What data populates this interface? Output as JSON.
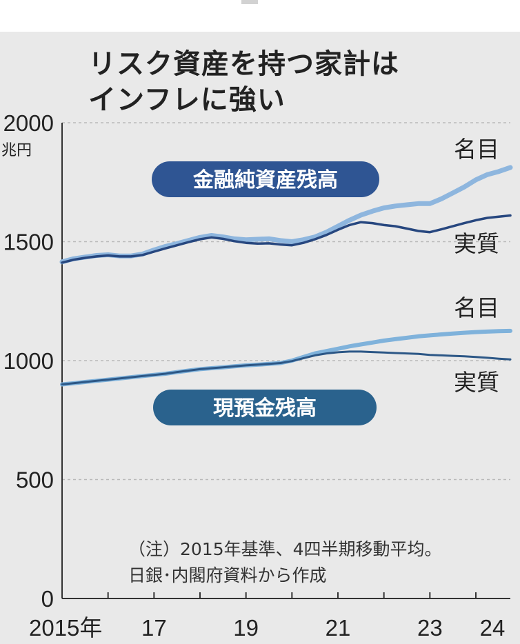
{
  "title_line1": "リスク資産を持つ家計は",
  "title_line2": "インフレに強い",
  "note_line1": "（注）2015年基準、4四半期移動平均。",
  "note_line2": "日銀･内閣府資料から作成",
  "colors": {
    "nominal": "#8eb6de",
    "real": "#27477f",
    "badge_fin": "#2f5593",
    "badge_dep": "#2a628d",
    "cash_nominal": "#7fb2db",
    "cash_real": "#2c5786"
  },
  "chart_data": {
    "type": "line",
    "title": "リスク資産を持つ家計はインフレに強い",
    "ylabel": "兆円",
    "ylim": [
      0,
      2000
    ],
    "yticks": [
      0,
      500,
      1000,
      1500,
      2000
    ],
    "xlim": [
      2015,
      2024.75
    ],
    "xticks": [
      2015,
      2017,
      2019,
      2021,
      2023,
      2024
    ],
    "xtick_labels": [
      "2015年",
      "17",
      "19",
      "21",
      "23",
      "24"
    ],
    "grid": "horizontal dashed",
    "groups": [
      {
        "name": "金融純資産残高",
        "series": [
          {
            "name": "名目",
            "x": [
              2015,
              2015.25,
              2015.5,
              2015.75,
              2016,
              2016.25,
              2016.5,
              2016.75,
              2017,
              2017.25,
              2017.5,
              2017.75,
              2018,
              2018.25,
              2018.5,
              2018.75,
              2019,
              2019.25,
              2019.5,
              2019.75,
              2020,
              2020.25,
              2020.5,
              2020.75,
              2021,
              2021.25,
              2021.5,
              2021.75,
              2022,
              2022.25,
              2022.5,
              2022.75,
              2023,
              2023.25,
              2023.5,
              2023.75,
              2024,
              2024.25,
              2024.5,
              2024.75
            ],
            "values": [
              1415,
              1428,
              1435,
              1442,
              1445,
              1440,
              1440,
              1448,
              1465,
              1480,
              1492,
              1505,
              1518,
              1526,
              1520,
              1512,
              1508,
              1510,
              1512,
              1505,
              1500,
              1508,
              1520,
              1540,
              1565,
              1590,
              1612,
              1628,
              1642,
              1650,
              1655,
              1660,
              1660,
              1680,
              1705,
              1730,
              1760,
              1782,
              1795,
              1812
            ]
          },
          {
            "name": "実質",
            "x": [
              2015,
              2015.25,
              2015.5,
              2015.75,
              2016,
              2016.25,
              2016.5,
              2016.75,
              2017,
              2017.25,
              2017.5,
              2017.75,
              2018,
              2018.25,
              2018.5,
              2018.75,
              2019,
              2019.25,
              2019.5,
              2019.75,
              2020,
              2020.25,
              2020.5,
              2020.75,
              2021,
              2021.25,
              2021.5,
              2021.75,
              2022,
              2022.25,
              2022.5,
              2022.75,
              2023,
              2023.25,
              2023.5,
              2023.75,
              2024,
              2024.25,
              2024.5,
              2024.75
            ],
            "values": [
              1412,
              1424,
              1432,
              1438,
              1442,
              1438,
              1438,
              1444,
              1458,
              1472,
              1485,
              1498,
              1510,
              1518,
              1512,
              1502,
              1495,
              1492,
              1493,
              1488,
              1485,
              1495,
              1510,
              1528,
              1550,
              1570,
              1582,
              1578,
              1570,
              1565,
              1555,
              1545,
              1540,
              1552,
              1565,
              1578,
              1590,
              1600,
              1605,
              1610
            ]
          }
        ]
      },
      {
        "name": "現預金残高",
        "series": [
          {
            "name": "名目",
            "x": [
              2015,
              2015.25,
              2015.5,
              2015.75,
              2016,
              2016.25,
              2016.5,
              2016.75,
              2017,
              2017.25,
              2017.5,
              2017.75,
              2018,
              2018.25,
              2018.5,
              2018.75,
              2019,
              2019.25,
              2019.5,
              2019.75,
              2020,
              2020.25,
              2020.5,
              2020.75,
              2021,
              2021.25,
              2021.5,
              2021.75,
              2022,
              2022.25,
              2022.5,
              2022.75,
              2023,
              2023.25,
              2023.5,
              2023.75,
              2024,
              2024.25,
              2024.5,
              2024.75
            ],
            "values": [
              900,
              905,
              910,
              915,
              920,
              925,
              930,
              935,
              940,
              945,
              952,
              958,
              964,
              968,
              972,
              976,
              980,
              983,
              986,
              990,
              1000,
              1015,
              1030,
              1040,
              1050,
              1060,
              1068,
              1076,
              1084,
              1090,
              1096,
              1102,
              1106,
              1110,
              1114,
              1117,
              1120,
              1122,
              1124,
              1125
            ]
          },
          {
            "name": "実質",
            "x": [
              2015,
              2015.25,
              2015.5,
              2015.75,
              2016,
              2016.25,
              2016.5,
              2016.75,
              2017,
              2017.25,
              2017.5,
              2017.75,
              2018,
              2018.25,
              2018.5,
              2018.75,
              2019,
              2019.25,
              2019.5,
              2019.75,
              2020,
              2020.25,
              2020.5,
              2020.75,
              2021,
              2021.25,
              2021.5,
              2021.75,
              2022,
              2022.25,
              2022.5,
              2022.75,
              2023,
              2023.25,
              2023.5,
              2023.75,
              2024,
              2024.25,
              2024.5,
              2024.75
            ],
            "values": [
              900,
              905,
              910,
              915,
              920,
              925,
              930,
              935,
              940,
              945,
              952,
              958,
              964,
              968,
              972,
              976,
              980,
              983,
              986,
              990,
              998,
              1010,
              1022,
              1030,
              1035,
              1038,
              1038,
              1036,
              1034,
              1032,
              1030,
              1028,
              1024,
              1022,
              1020,
              1018,
              1015,
              1012,
              1008,
              1005
            ]
          }
        ]
      }
    ]
  }
}
